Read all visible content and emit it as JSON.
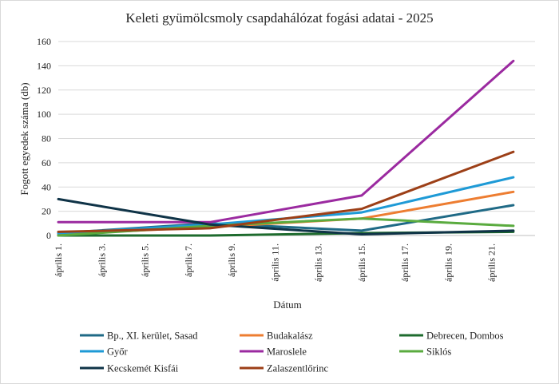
{
  "chart_data": {
    "type": "line",
    "title": "Keleti gyümölcsmoly csapdahálózat fogási adatai - 2025",
    "xlabel": "Dátum",
    "ylabel": "Fogott egyedek száma (db)",
    "ylim": [
      0,
      160
    ],
    "yticks": [
      0,
      20,
      40,
      60,
      80,
      100,
      120,
      140,
      160
    ],
    "xlim": [
      "2025-04-01",
      "2025-04-23"
    ],
    "xticks": [
      {
        "date": "2025-04-01",
        "label": "április 1."
      },
      {
        "date": "2025-04-03",
        "label": "április 3."
      },
      {
        "date": "2025-04-05",
        "label": "április 5."
      },
      {
        "date": "2025-04-07",
        "label": "április 7."
      },
      {
        "date": "2025-04-09",
        "label": "április 9."
      },
      {
        "date": "2025-04-11",
        "label": "április 11."
      },
      {
        "date": "2025-04-13",
        "label": "április 13."
      },
      {
        "date": "2025-04-15",
        "label": "április 15."
      },
      {
        "date": "2025-04-17",
        "label": "április 17."
      },
      {
        "date": "2025-04-19",
        "label": "április 19."
      },
      {
        "date": "2025-04-21",
        "label": "április 21."
      }
    ],
    "grid": true,
    "legend_position": "bottom",
    "series": [
      {
        "name": "Bp., XI. kerület, Sasad",
        "color": "#1f6a86",
        "points": [
          {
            "x": "2025-04-01",
            "y": 2
          },
          {
            "x": "2025-04-08",
            "y": 10
          },
          {
            "x": "2025-04-15",
            "y": 4
          },
          {
            "x": "2025-04-22",
            "y": 25
          }
        ]
      },
      {
        "name": "Budakalász",
        "color": "#ed7d31",
        "points": [
          {
            "x": "2025-04-01",
            "y": 1
          },
          {
            "x": "2025-04-08",
            "y": 7
          },
          {
            "x": "2025-04-15",
            "y": 14
          },
          {
            "x": "2025-04-22",
            "y": 36
          }
        ]
      },
      {
        "name": "Debrecen, Dombos",
        "color": "#1e6b2e",
        "points": [
          {
            "x": "2025-04-01",
            "y": 0
          },
          {
            "x": "2025-04-08",
            "y": 0
          },
          {
            "x": "2025-04-15",
            "y": 2
          },
          {
            "x": "2025-04-22",
            "y": 3
          }
        ]
      },
      {
        "name": "Győr",
        "color": "#1e9ad6",
        "points": [
          {
            "x": "2025-04-01",
            "y": 2
          },
          {
            "x": "2025-04-08",
            "y": 9
          },
          {
            "x": "2025-04-15",
            "y": 19
          },
          {
            "x": "2025-04-22",
            "y": 48
          }
        ]
      },
      {
        "name": "Maroslele",
        "color": "#9b2aa0",
        "points": [
          {
            "x": "2025-04-01",
            "y": 11
          },
          {
            "x": "2025-04-08",
            "y": 11
          },
          {
            "x": "2025-04-15",
            "y": 33
          },
          {
            "x": "2025-04-22",
            "y": 144
          }
        ]
      },
      {
        "name": "Siklós",
        "color": "#5aab3f",
        "points": [
          {
            "x": "2025-04-01",
            "y": 0
          },
          {
            "x": "2025-04-08",
            "y": 8
          },
          {
            "x": "2025-04-15",
            "y": 14
          },
          {
            "x": "2025-04-22",
            "y": 8
          }
        ]
      },
      {
        "name": "Kecskemét Kisfái",
        "color": "#0f3347",
        "points": [
          {
            "x": "2025-04-01",
            "y": 30
          },
          {
            "x": "2025-04-08",
            "y": 9
          },
          {
            "x": "2025-04-15",
            "y": 1
          },
          {
            "x": "2025-04-22",
            "y": 4
          }
        ]
      },
      {
        "name": "Zalaszentlőrinc",
        "color": "#9c3f17",
        "points": [
          {
            "x": "2025-04-01",
            "y": 3
          },
          {
            "x": "2025-04-08",
            "y": 6
          },
          {
            "x": "2025-04-15",
            "y": 22
          },
          {
            "x": "2025-04-22",
            "y": 69
          }
        ]
      }
    ]
  }
}
